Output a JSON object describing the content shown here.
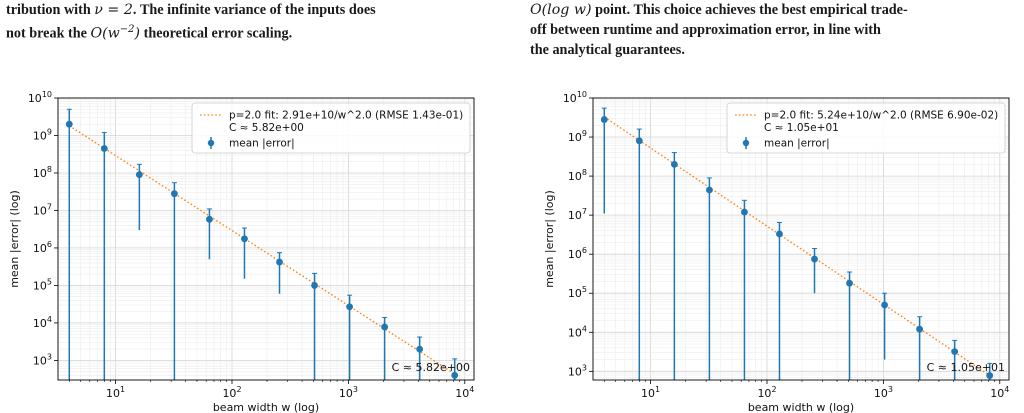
{
  "captions": {
    "left": {
      "line1_a": "tribution with ",
      "line1_math": "ν = 2",
      "line1_b": ". The infinite variance of the inputs does",
      "line2_a": "not break the ",
      "line2_math": "O(w",
      "line2_sup": "−2",
      "line2_math_close": ")",
      "line2_b": " theoretical error scaling."
    },
    "right": {
      "line1_math": "O(log w)",
      "line1_b": " point. This choice achieves the best empirical trade-",
      "line2": "off between runtime and approximation error, in line with",
      "line3": "the analytical guarantees."
    }
  },
  "chart_data": [
    {
      "type": "scatter",
      "xlabel": "beam width w (log)",
      "ylabel": "mean |error| (log)",
      "xscale": "log",
      "yscale": "log",
      "xlim": [
        3.2,
        12000
      ],
      "ylim": [
        300,
        10000000000
      ],
      "xticks": [
        {
          "v": 10,
          "b": "10",
          "e": "1"
        },
        {
          "v": 100,
          "b": "10",
          "e": "2"
        },
        {
          "v": 1000,
          "b": "10",
          "e": "3"
        },
        {
          "v": 10000,
          "b": "10",
          "e": "4"
        }
      ],
      "yticks": [
        {
          "v": 1000,
          "b": "10",
          "e": "3"
        },
        {
          "v": 10000,
          "b": "10",
          "e": "4"
        },
        {
          "v": 100000,
          "b": "10",
          "e": "5"
        },
        {
          "v": 1000000,
          "b": "10",
          "e": "6"
        },
        {
          "v": 10000000,
          "b": "10",
          "e": "7"
        },
        {
          "v": 100000000,
          "b": "10",
          "e": "8"
        },
        {
          "v": 1000000000,
          "b": "10",
          "e": "9"
        },
        {
          "v": 10000000000,
          "b": "10",
          "e": "10"
        }
      ],
      "grid": true,
      "legend_position": "top-right",
      "legend": {
        "fit_line1": "p=2.0 fit: 2.91e+10/w^2.0  (RMSE 1.43e-01)",
        "fit_line2": "C ≈ 5.82e+00",
        "points": "mean |error|"
      },
      "annotation": "C ≈ 5.82e+00",
      "fit": {
        "coef": 29100000000,
        "power": 2.0
      },
      "x": [
        4,
        8,
        16,
        32,
        64,
        128,
        256,
        512,
        1024,
        2048,
        4096,
        8192
      ],
      "y": [
        2000000000,
        450000000,
        90000000,
        28000000,
        5800000,
        1750000,
        420000,
        100000,
        27000,
        7800,
        2000,
        400
      ],
      "err_low": [
        300,
        300,
        3000000,
        300,
        500000,
        150000,
        60000,
        300,
        300,
        300,
        300,
        300
      ],
      "err_high": [
        5000000000,
        1200000000,
        170000000,
        55000000,
        11000000,
        3400000,
        750000,
        210000,
        55000,
        14000,
        4200,
        1100
      ],
      "colors": {
        "points": "#1f77b4",
        "fit": "#ff7f0e"
      }
    },
    {
      "type": "scatter",
      "xlabel": "beam width w (log)",
      "ylabel": "mean |error| (log)",
      "xscale": "log",
      "yscale": "log",
      "xlim": [
        3.2,
        12000
      ],
      "ylim": [
        600,
        10000000000
      ],
      "xticks": [
        {
          "v": 10,
          "b": "10",
          "e": "1"
        },
        {
          "v": 100,
          "b": "10",
          "e": "2"
        },
        {
          "v": 1000,
          "b": "10",
          "e": "3"
        },
        {
          "v": 10000,
          "b": "10",
          "e": "4"
        }
      ],
      "yticks": [
        {
          "v": 1000,
          "b": "10",
          "e": "3"
        },
        {
          "v": 10000,
          "b": "10",
          "e": "4"
        },
        {
          "v": 100000,
          "b": "10",
          "e": "5"
        },
        {
          "v": 1000000,
          "b": "10",
          "e": "6"
        },
        {
          "v": 10000000,
          "b": "10",
          "e": "7"
        },
        {
          "v": 100000000,
          "b": "10",
          "e": "8"
        },
        {
          "v": 1000000000,
          "b": "10",
          "e": "9"
        },
        {
          "v": 10000000000,
          "b": "10",
          "e": "10"
        }
      ],
      "grid": true,
      "legend_position": "top-right",
      "legend": {
        "fit_line1": "p=2.0 fit: 5.24e+10/w^2.0  (RMSE 6.90e-02)",
        "fit_line2": "C ≈ 1.05e+01",
        "points": "mean |error|"
      },
      "annotation": "C ≈ 1.05e+01",
      "fit": {
        "coef": 52400000000,
        "power": 2.0
      },
      "x": [
        4,
        8,
        16,
        32,
        64,
        128,
        256,
        512,
        1024,
        2048,
        4096,
        8192
      ],
      "y": [
        2800000000,
        800000000,
        200000000,
        44000000,
        12000000,
        3300000,
        750000,
        180000,
        50000,
        12000,
        3200,
        780
      ],
      "err_low": [
        11000000,
        600,
        600,
        600,
        600,
        600,
        100000,
        600,
        2000,
        600,
        600,
        600
      ],
      "err_high": [
        5500000000,
        1600000000,
        400000000,
        90000000,
        24000000,
        6500000,
        1400000,
        350000,
        100000,
        25000,
        6200,
        1600
      ],
      "colors": {
        "points": "#1f77b4",
        "fit": "#ff7f0e"
      }
    }
  ]
}
